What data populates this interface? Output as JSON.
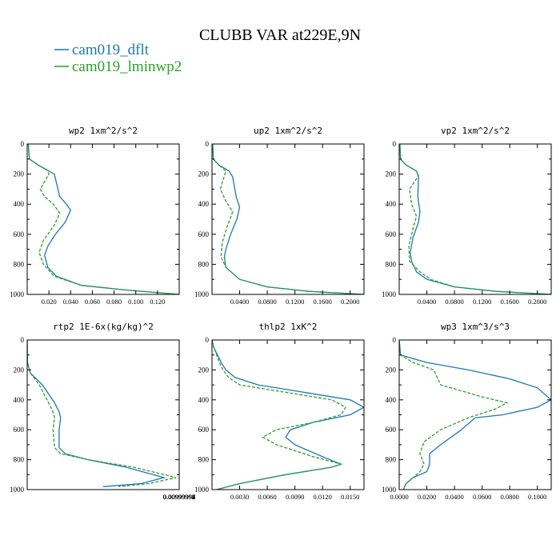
{
  "figure": {
    "title": "CLUBB VAR at229E,9N",
    "legend": [
      {
        "label": "cam019_dflt",
        "color": "#1f77b4"
      },
      {
        "label": "cam019_lminwp2",
        "color": "#2ca02c"
      }
    ]
  },
  "chart_data": [
    {
      "type": "line",
      "title": "wp2  1xm^2/s^2",
      "xlim": [
        0,
        0.14
      ],
      "ylim": [
        1000,
        0
      ],
      "y_reversed": true,
      "grid": false,
      "xticks": [
        0.02,
        0.04,
        0.06,
        0.08,
        0.1,
        0.12
      ],
      "xtick_labels": [
        "0.020",
        "0.040",
        "0.060",
        "0.080",
        "0.100",
        "0.120"
      ],
      "yticks": [
        0,
        200,
        400,
        600,
        800,
        1000
      ],
      "series": [
        {
          "name": "cam019_dflt",
          "color": "#1f77b4",
          "dash": false,
          "x": [
            0.001,
            0.002,
            0.01,
            0.02,
            0.025,
            0.03,
            0.036,
            0.04,
            0.035,
            0.026,
            0.019,
            0.016,
            0.019,
            0.027,
            0.05,
            0.09,
            0.14
          ],
          "y": [
            0,
            100,
            140,
            180,
            200,
            350,
            400,
            440,
            520,
            600,
            680,
            740,
            820,
            880,
            940,
            970,
            1000
          ]
        },
        {
          "name": "cam019_lminwp2",
          "color": "#2ca02c",
          "dash": true,
          "x": [
            0.001,
            0.002,
            0.01,
            0.018,
            0.02,
            0.012,
            0.016,
            0.024,
            0.03,
            0.025,
            0.015,
            0.011,
            0.015,
            0.025,
            0.05,
            0.09,
            0.14
          ],
          "y": [
            0,
            100,
            140,
            170,
            200,
            300,
            350,
            400,
            460,
            540,
            640,
            720,
            800,
            880,
            940,
            970,
            1000
          ]
        }
      ]
    },
    {
      "type": "line",
      "title": "up2  1xm^2/s^2",
      "xlim": [
        0,
        0.22
      ],
      "ylim": [
        1000,
        0
      ],
      "y_reversed": true,
      "grid": false,
      "xticks": [
        0.04,
        0.08,
        0.12,
        0.16,
        0.2
      ],
      "xtick_labels": [
        "0.0400",
        "0.0800",
        "0.1200",
        "0.1600",
        "0.2000"
      ],
      "yticks": [
        0,
        200,
        400,
        600,
        800,
        1000
      ],
      "series": [
        {
          "name": "cam019_dflt",
          "color": "#1f77b4",
          "dash": false,
          "x": [
            0.001,
            0.002,
            0.01,
            0.025,
            0.03,
            0.035,
            0.04,
            0.036,
            0.027,
            0.02,
            0.018,
            0.02,
            0.04,
            0.08,
            0.14,
            0.22
          ],
          "y": [
            0,
            100,
            140,
            180,
            220,
            350,
            420,
            500,
            600,
            700,
            750,
            820,
            900,
            950,
            980,
            1000
          ]
        },
        {
          "name": "cam019_lminwp2",
          "color": "#2ca02c",
          "dash": true,
          "x": [
            0.001,
            0.002,
            0.01,
            0.02,
            0.018,
            0.012,
            0.02,
            0.03,
            0.022,
            0.015,
            0.013,
            0.02,
            0.04,
            0.08,
            0.14,
            0.22
          ],
          "y": [
            0,
            100,
            140,
            180,
            210,
            300,
            380,
            450,
            550,
            650,
            750,
            820,
            900,
            950,
            980,
            1000
          ]
        }
      ]
    },
    {
      "type": "line",
      "title": "vp2  1xm^2/s^2",
      "xlim": [
        0,
        0.22
      ],
      "ylim": [
        1000,
        0
      ],
      "y_reversed": true,
      "grid": false,
      "xticks": [
        0.04,
        0.08,
        0.12,
        0.16,
        0.2
      ],
      "xtick_labels": [
        "0.0400",
        "0.0800",
        "0.1200",
        "0.1600",
        "0.2000"
      ],
      "yticks": [
        0,
        200,
        400,
        600,
        800,
        1000
      ],
      "series": [
        {
          "name": "cam019_dflt",
          "color": "#1f77b4",
          "dash": false,
          "x": [
            0.001,
            0.002,
            0.01,
            0.025,
            0.028,
            0.027,
            0.03,
            0.028,
            0.02,
            0.016,
            0.018,
            0.025,
            0.04,
            0.08,
            0.14,
            0.22
          ],
          "y": [
            0,
            100,
            140,
            180,
            220,
            350,
            450,
            520,
            620,
            720,
            780,
            850,
            900,
            950,
            980,
            1000
          ]
        },
        {
          "name": "cam019_lminwp2",
          "color": "#2ca02c",
          "dash": true,
          "x": [
            0.001,
            0.002,
            0.01,
            0.025,
            0.028,
            0.015,
            0.018,
            0.025,
            0.02,
            0.014,
            0.015,
            0.03,
            0.045,
            0.08,
            0.14,
            0.22
          ],
          "y": [
            0,
            100,
            140,
            180,
            210,
            300,
            400,
            480,
            560,
            680,
            780,
            850,
            900,
            950,
            980,
            1000
          ]
        }
      ]
    },
    {
      "type": "line",
      "title": "rtp2  1E-6x(kg/kg)^2",
      "xlim": [
        0,
        0.00999997
      ],
      "ylim": [
        1000,
        0
      ],
      "y_reversed": true,
      "grid": false,
      "xticks": [
        0.00999991,
        0.00999992,
        0.00999993,
        0.00999994,
        0.00999995,
        0.00999996,
        0.00999997
      ],
      "xtick_labels": [
        "0.00999991",
        "0.00999992",
        "0.00999993",
        "0.00999994",
        "0.00999995",
        "0.00999996",
        "0.00999997"
      ],
      "yticks": [
        0,
        200,
        400,
        600,
        800,
        1000
      ],
      "series": [
        {
          "name": "cam019_dflt",
          "color": "#1f77b4",
          "dash": false,
          "x": [
            0.0,
            2e-05,
            0.0002,
            0.001,
            0.0018,
            0.0021,
            0.0022,
            0.0021,
            0.0021,
            0.0025,
            0.004,
            0.0065,
            0.009,
            0.0075,
            0.005
          ],
          "y": [
            0,
            150,
            220,
            300,
            420,
            480,
            520,
            600,
            720,
            760,
            800,
            850,
            920,
            960,
            980
          ]
        },
        {
          "name": "cam019_lminwp2",
          "color": "#2ca02c",
          "dash": true,
          "x": [
            0.0,
            2e-05,
            0.0002,
            0.0008,
            0.0014,
            0.0017,
            0.0018,
            0.0017,
            0.0018,
            0.0022,
            0.004,
            0.007,
            0.0098,
            0.008,
            0.006
          ],
          "y": [
            0,
            150,
            220,
            300,
            420,
            480,
            520,
            600,
            720,
            760,
            800,
            850,
            920,
            960,
            980
          ]
        }
      ]
    },
    {
      "type": "line",
      "title": "thlp2  1xK^2",
      "xlim": [
        0,
        0.0165
      ],
      "ylim": [
        1000,
        0
      ],
      "y_reversed": true,
      "grid": false,
      "xticks": [
        0.003,
        0.006,
        0.009,
        0.012,
        0.015
      ],
      "xtick_labels": [
        "0.0030",
        "0.0060",
        "0.0090",
        "0.0120",
        "0.0150"
      ],
      "yticks": [
        0,
        200,
        400,
        600,
        800,
        1000
      ],
      "series": [
        {
          "name": "cam019_dflt",
          "color": "#1f77b4",
          "dash": false,
          "x": [
            0.0,
            0.0002,
            0.0006,
            0.001,
            0.0015,
            0.0025,
            0.005,
            0.01,
            0.015,
            0.0165,
            0.015,
            0.011,
            0.0085,
            0.008,
            0.009,
            0.012,
            0.014,
            0.013,
            0.008,
            0.003,
            0.0005
          ],
          "y": [
            0,
            50,
            100,
            150,
            200,
            250,
            300,
            350,
            400,
            450,
            500,
            550,
            600,
            650,
            700,
            780,
            830,
            850,
            900,
            960,
            1000
          ]
        },
        {
          "name": "cam019_lminwp2",
          "color": "#2ca02c",
          "dash": true,
          "x": [
            0.0,
            0.0002,
            0.0005,
            0.0008,
            0.0012,
            0.0018,
            0.003,
            0.008,
            0.013,
            0.0145,
            0.014,
            0.011,
            0.007,
            0.0055,
            0.007,
            0.011,
            0.014,
            0.013,
            0.008,
            0.003,
            0.0005
          ],
          "y": [
            0,
            50,
            100,
            150,
            200,
            250,
            300,
            350,
            400,
            450,
            500,
            550,
            600,
            650,
            700,
            780,
            830,
            850,
            900,
            960,
            1000
          ]
        }
      ]
    },
    {
      "type": "line",
      "title": "wp3  1xm^3/s^3",
      "xlim": [
        0,
        0.11
      ],
      "ylim": [
        1000,
        0
      ],
      "y_reversed": true,
      "grid": false,
      "xticks": [
        0.0,
        0.02,
        0.04,
        0.06,
        0.08,
        0.1
      ],
      "xtick_labels": [
        "0.0000",
        "0.0200",
        "0.0400",
        "0.0600",
        "0.0800",
        "0.1000"
      ],
      "yticks": [
        0,
        200,
        400,
        600,
        800,
        1000
      ],
      "series": [
        {
          "name": "cam019_dflt",
          "color": "#1f77b4",
          "dash": false,
          "x": [
            0.0,
            0.001,
            0.02,
            0.05,
            0.08,
            0.1,
            0.11,
            0.1,
            0.075,
            0.055,
            0.045,
            0.03,
            0.022,
            0.022,
            0.02,
            0.01,
            0.005,
            0.003
          ],
          "y": [
            0,
            100,
            150,
            200,
            260,
            320,
            400,
            450,
            500,
            520,
            600,
            700,
            760,
            830,
            880,
            920,
            960,
            1000
          ]
        },
        {
          "name": "cam019_lminwp2",
          "color": "#2ca02c",
          "dash": true,
          "x": [
            0.0,
            0.001,
            0.01,
            0.025,
            0.03,
            0.06,
            0.078,
            0.07,
            0.05,
            0.03,
            0.018,
            0.015,
            0.018,
            0.015,
            0.01,
            0.005,
            0.003
          ],
          "y": [
            0,
            100,
            150,
            200,
            300,
            380,
            420,
            460,
            520,
            600,
            680,
            760,
            830,
            880,
            920,
            960,
            1000
          ]
        }
      ]
    }
  ]
}
